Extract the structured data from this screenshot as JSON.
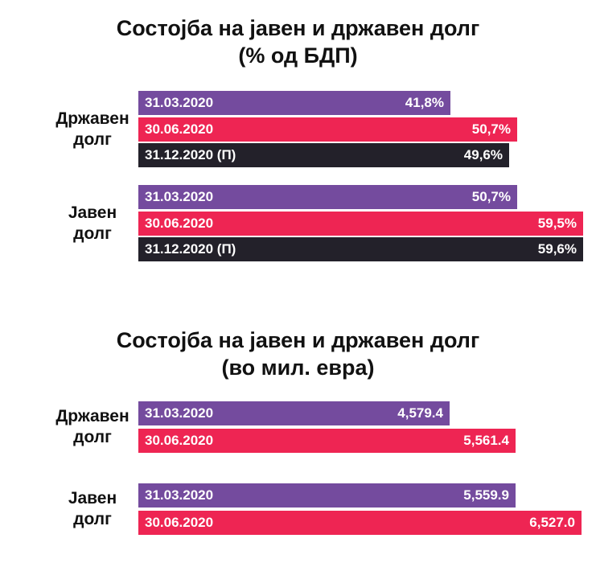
{
  "colors": {
    "q1": "#744b9e",
    "q2": "#ee2553",
    "q4": "#23212a"
  },
  "chart_data": [
    {
      "type": "bar",
      "orientation": "horizontal",
      "title": [
        "Состојба на јавен и државен долг",
        "(% од БДП)"
      ],
      "categories": [
        "Државен долг",
        "Јавен долг"
      ],
      "category_lines": [
        [
          "Државен",
          "долг"
        ],
        [
          "Јавен",
          "долг"
        ]
      ],
      "series": [
        {
          "name": "31.03.2020",
          "color": "q1",
          "values": [
            41.8,
            50.7
          ],
          "labels": [
            "41,8%",
            "50,7%"
          ]
        },
        {
          "name": "30.06.2020",
          "color": "q2",
          "values": [
            50.7,
            59.5
          ],
          "labels": [
            "50,7%",
            "59,5%"
          ]
        },
        {
          "name": "31.12.2020 (П)",
          "color": "q4",
          "values": [
            49.6,
            59.6
          ],
          "labels": [
            "49,6%",
            "59,6%"
          ]
        }
      ],
      "unit": "% од БДП",
      "xlim": [
        0,
        70
      ]
    },
    {
      "type": "bar",
      "orientation": "horizontal",
      "title": [
        "Состојба на јавен и државен долг",
        "(во мил. евра)"
      ],
      "categories": [
        "Државен долг",
        "Јавен долг"
      ],
      "category_lines": [
        [
          "Државен",
          "долг"
        ],
        [
          "Јавен",
          "долг"
        ]
      ],
      "series": [
        {
          "name": "31.03.2020",
          "color": "q1",
          "values": [
            4579.4,
            5559.9
          ],
          "labels": [
            "4,579.4",
            "5,559.9"
          ]
        },
        {
          "name": "30.06.2020",
          "color": "q2",
          "values": [
            5561.4,
            6527.0
          ],
          "labels": [
            "5,561.4",
            "6,527.0"
          ]
        }
      ],
      "unit": "мил. евра",
      "xlim": [
        0,
        7700
      ]
    }
  ]
}
